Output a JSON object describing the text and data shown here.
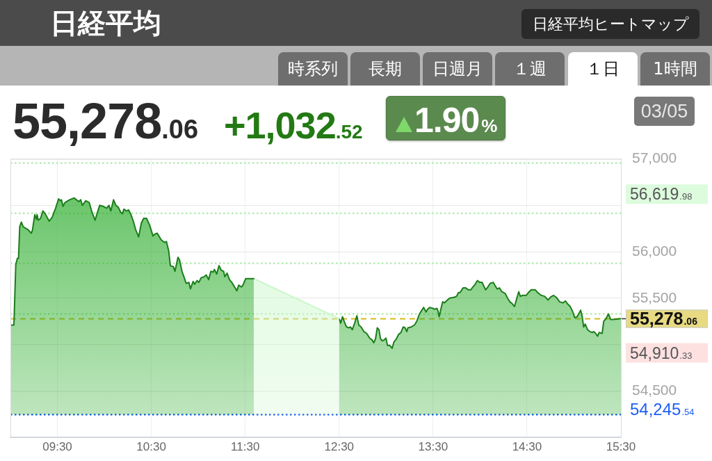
{
  "chart_data": {
    "type": "area",
    "title": "日経平均",
    "annotations": [
      "55,278.06",
      "+1,032.52",
      "1.90%",
      "03/05",
      "日経平均ヒートマップ",
      "時系列",
      "長期",
      "日週月",
      "１週",
      "１日",
      "1時間",
      "56,619.98",
      "54,910.33"
    ],
    "xlim": [
      9,
      15.5
    ],
    "xticks": [
      {
        "value": 9.5,
        "label": "09:30"
      },
      {
        "value": 10.5,
        "label": "10:30"
      },
      {
        "value": 11.5,
        "label": "11:30"
      },
      {
        "value": 12.5,
        "label": "12:30"
      },
      {
        "value": 13.5,
        "label": "13:30"
      },
      {
        "value": 14.5,
        "label": "14:30"
      },
      {
        "value": 15.5,
        "label": "15:30"
      }
    ],
    "ylim": [
      54000,
      57000
    ],
    "yticks": [
      {
        "value": 54500,
        "label": "54,500"
      },
      {
        "value": 55000,
        "label": null
      },
      {
        "value": 55500,
        "label": "55,500"
      },
      {
        "value": 56000,
        "label": "56,000"
      },
      {
        "value": 56500,
        "label": null
      },
      {
        "value": 57000,
        "label": "57,000"
      }
    ],
    "grid": true,
    "ref_lines": [
      {
        "axis": "y",
        "value": 56955,
        "color": "#b4ecb4",
        "line_style": "dotted"
      },
      {
        "axis": "y",
        "value": 56415,
        "color": "#b4ecb4",
        "line_style": "dotted"
      },
      {
        "axis": "y",
        "value": 55875,
        "color": "#b4ecb4",
        "line_style": "dotted"
      },
      {
        "axis": "y",
        "value": 55330,
        "color": "#b4ecb4",
        "line_style": "dotted"
      },
      {
        "axis": "y",
        "value": 55278.06,
        "label": "55,278.06",
        "color": "#d4bc1c",
        "line_style": "dashed"
      },
      {
        "axis": "y",
        "value": 54245.54,
        "label": "54,245.54",
        "color": "#1f5ff5",
        "line_style": "dotted"
      }
    ],
    "series": [
      {
        "color": "#1b7d1b",
        "x": [
          9.0,
          9.037,
          9.057,
          9.074,
          9.086,
          9.099,
          9.116,
          9.136,
          9.185,
          9.222,
          9.234,
          9.259,
          9.276,
          9.284,
          9.296,
          9.321,
          9.346,
          9.37,
          9.412,
          9.444,
          9.481,
          9.513,
          9.531,
          9.543,
          9.56,
          9.58,
          9.629,
          9.679,
          9.703,
          9.728,
          9.748,
          9.765,
          9.802,
          9.839,
          9.864,
          9.901,
          9.925,
          9.95,
          9.987,
          10.024,
          10.049,
          10.069,
          10.098,
          10.123,
          10.148,
          10.172,
          10.192,
          10.209,
          10.234,
          10.259,
          10.283,
          10.308,
          10.333,
          10.365,
          10.394,
          10.419,
          10.449,
          10.481,
          10.518,
          10.537,
          10.562,
          10.587,
          10.604,
          10.641,
          10.661,
          10.685,
          10.703,
          10.735,
          10.752,
          10.784,
          10.801,
          10.826,
          10.858,
          10.871,
          10.9,
          10.917,
          10.945,
          10.962,
          10.987,
          11.006,
          11.031,
          11.061,
          11.085,
          11.11,
          11.135,
          11.159,
          11.172,
          11.196,
          11.221,
          11.246,
          11.27,
          11.283,
          11.307,
          11.332,
          11.357,
          11.381,
          11.411,
          11.431,
          11.46,
          11.475,
          11.505,
          11.591
        ],
        "values": [
          55210,
          55210,
          55860,
          55930,
          55930,
          56270,
          56320,
          56270,
          56240,
          56200,
          56230,
          56400,
          56350,
          56400,
          56340,
          56360,
          56440,
          56410,
          56330,
          56370,
          56470,
          56570,
          56550,
          56560,
          56490,
          56530,
          56560,
          56580,
          56560,
          56540,
          56560,
          56500,
          56550,
          56530,
          56440,
          56340,
          56420,
          56500,
          56490,
          56470,
          56500,
          56440,
          56560,
          56500,
          56480,
          56430,
          56410,
          56460,
          56440,
          56450,
          56400,
          56330,
          56240,
          56160,
          56310,
          56360,
          56360,
          56290,
          56170,
          56190,
          56200,
          56160,
          56130,
          56100,
          56110,
          56010,
          55850,
          55840,
          55790,
          55940,
          55910,
          55790,
          55700,
          55660,
          55670,
          55600,
          55680,
          55650,
          55690,
          55670,
          55720,
          55730,
          55750,
          55700,
          55790,
          55780,
          55810,
          55760,
          55850,
          55800,
          55790,
          55730,
          55770,
          55700,
          55670,
          55630,
          55580,
          55640,
          55620,
          55640,
          55710,
          55710
        ]
      },
      {
        "color": "#ccf7cc",
        "x": [
          11.591,
          12.5
        ],
        "values": [
          55710,
          55280
        ]
      },
      {
        "color": "#1b7d1b",
        "x": [
          12.5,
          12.516,
          12.536,
          12.553,
          12.578,
          12.603,
          12.62,
          12.64,
          12.665,
          12.689,
          12.709,
          12.734,
          12.763,
          12.793,
          12.825,
          12.85,
          12.869,
          12.887,
          12.906,
          12.924,
          12.941,
          12.961,
          12.98,
          12.998,
          13.015,
          13.04,
          13.064,
          13.084,
          13.109,
          13.133,
          13.158,
          13.183,
          13.202,
          13.22,
          13.232,
          13.269,
          13.301,
          13.326,
          13.355,
          13.38,
          13.4,
          13.425,
          13.442,
          13.466,
          13.499,
          13.516,
          13.541,
          13.553,
          13.565,
          13.583,
          13.602,
          13.622,
          13.652,
          13.676,
          13.726,
          13.75,
          13.77,
          13.787,
          13.819,
          13.849,
          13.874,
          13.903,
          13.923,
          13.948,
          13.972,
          13.997,
          14.022,
          14.059,
          14.083,
          14.108,
          14.14,
          14.157,
          14.182,
          14.207,
          14.232,
          14.269,
          14.293,
          14.318,
          14.343,
          14.367,
          14.392,
          14.412,
          14.429,
          14.454,
          14.491,
          14.515,
          14.545,
          14.577,
          14.589,
          14.614,
          14.651,
          14.688,
          14.725,
          14.75,
          14.782,
          14.811,
          14.848,
          14.885,
          14.91,
          14.93,
          14.96,
          14.984,
          15.009,
          15.034,
          15.071,
          15.088,
          15.103,
          15.12,
          15.145,
          15.169,
          15.194,
          15.211,
          15.231,
          15.251,
          15.268,
          15.3,
          15.317,
          15.342,
          15.367,
          15.391,
          15.416,
          15.5
        ],
        "values": [
          55280,
          55230,
          55300,
          55250,
          55190,
          55180,
          55190,
          55160,
          55230,
          55310,
          55210,
          55190,
          55140,
          55120,
          55070,
          55050,
          55020,
          55060,
          55180,
          55160,
          55060,
          55040,
          55050,
          55070,
          54990,
          54990,
          54960,
          55030,
          55060,
          55110,
          55130,
          55190,
          55180,
          55140,
          55180,
          55190,
          55210,
          55250,
          55330,
          55370,
          55400,
          55350,
          55380,
          55400,
          55390,
          55380,
          55390,
          55360,
          55300,
          55380,
          55460,
          55450,
          55480,
          55500,
          55510,
          55520,
          55560,
          55560,
          55610,
          55610,
          55590,
          55590,
          55620,
          55650,
          55690,
          55670,
          55670,
          55590,
          55620,
          55660,
          55670,
          55640,
          55600,
          55610,
          55570,
          55550,
          55500,
          55460,
          55440,
          55410,
          55500,
          55570,
          55520,
          55530,
          55530,
          55560,
          55590,
          55590,
          55590,
          55560,
          55530,
          55520,
          55480,
          55510,
          55530,
          55510,
          55460,
          55450,
          55470,
          55440,
          55410,
          55360,
          55290,
          55300,
          55370,
          55300,
          55190,
          55220,
          55160,
          55140,
          55130,
          55140,
          55120,
          55090,
          55130,
          55120,
          55250,
          55280,
          55330,
          55270,
          55270,
          55280
        ]
      }
    ]
  }
}
